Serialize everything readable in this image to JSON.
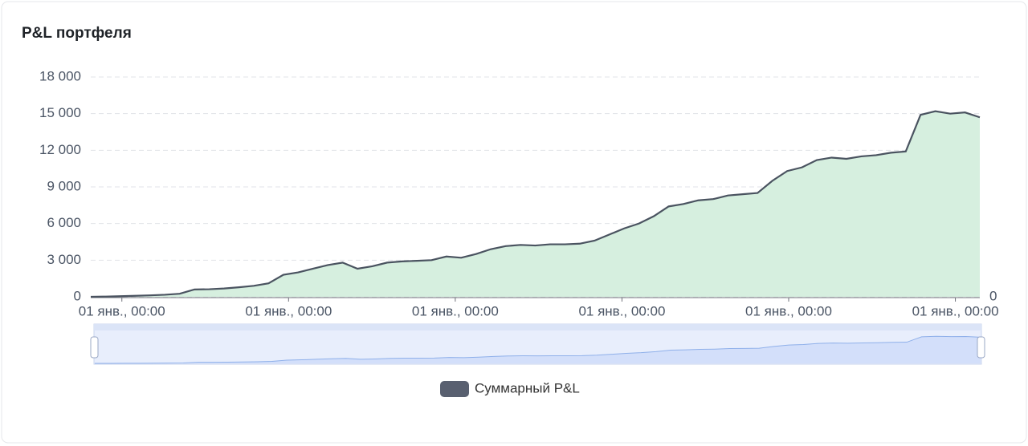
{
  "chart_data": {
    "type": "line",
    "title": "P&L портфеля",
    "x": [
      0,
      1,
      2,
      3,
      4,
      5,
      6,
      7,
      8,
      9,
      10,
      11,
      12,
      13,
      14,
      15,
      16,
      17,
      18,
      19,
      20,
      21,
      22,
      23,
      24,
      25,
      26,
      27,
      28,
      29,
      30,
      31,
      32,
      33,
      34,
      35,
      36,
      37,
      38,
      39,
      40,
      41,
      42,
      43,
      44,
      45,
      46,
      47,
      48,
      49,
      50,
      51,
      52,
      53,
      54,
      55,
      56,
      57,
      58,
      59,
      60
    ],
    "series": [
      {
        "name": "Суммарный P&L",
        "color": "#4a5360",
        "fill": "#d6efdf",
        "values": [
          0,
          20,
          50,
          80,
          120,
          170,
          250,
          600,
          620,
          680,
          780,
          900,
          1100,
          1800,
          2000,
          2300,
          2600,
          2800,
          2300,
          2500,
          2800,
          2900,
          2950,
          3000,
          3300,
          3200,
          3500,
          3900,
          4150,
          4250,
          4200,
          4300,
          4300,
          4350,
          4600,
          5100,
          5600,
          6000,
          6600,
          7400,
          7600,
          7900,
          8000,
          8300,
          8400,
          8500,
          9500,
          10300,
          10600,
          11200,
          11400,
          11300,
          11500,
          11600,
          11800,
          11900,
          14900,
          15200,
          15000,
          15100,
          14700
        ]
      }
    ],
    "xlim": [
      0,
      60
    ],
    "xticks": [
      {
        "value": 2.1,
        "label": "01 янв., 00:00"
      },
      {
        "value": 13.35,
        "label": "01 янв., 00:00"
      },
      {
        "value": 24.6,
        "label": "01 янв., 00:00"
      },
      {
        "value": 35.85,
        "label": "01 янв., 00:00"
      },
      {
        "value": 47.1,
        "label": "01 янв., 00:00"
      },
      {
        "value": 58.35,
        "label": "01 янв., 00:00"
      }
    ],
    "ylim": [
      0,
      18000
    ],
    "yticks": [
      0,
      {
        "value": 3000,
        "label": "3 000"
      },
      {
        "value": 6000,
        "label": "6 000"
      },
      {
        "value": 9000,
        "label": "9 000"
      },
      {
        "value": 12000,
        "label": "12 000"
      },
      {
        "value": 15000,
        "label": "15 000"
      },
      {
        "value": 18000,
        "label": "18 000"
      }
    ],
    "y2lim": [
      0,
      1
    ],
    "y2ticks": [
      0
    ],
    "grid": true,
    "legend": "bottom"
  }
}
